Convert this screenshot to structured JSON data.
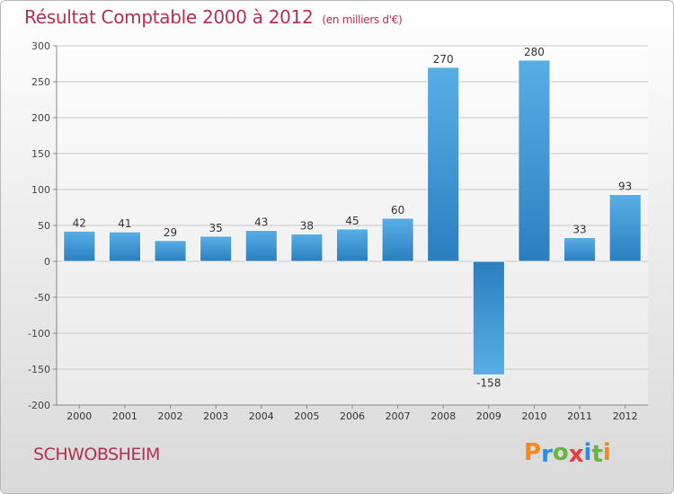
{
  "header": {
    "title": "Résultat Comptable 2000 à 2012",
    "subtitle": "(en milliers d'€)"
  },
  "footer": {
    "city": "SCHWOBSHEIM",
    "brand": "Proxiti",
    "brand_letters": [
      {
        "char": "P",
        "color": "#f08a1c"
      },
      {
        "char": "r",
        "color": "#2b8fd8"
      },
      {
        "char": "o",
        "color": "#69b33f"
      },
      {
        "char": "x",
        "color": "#e83d3d"
      },
      {
        "char": "i",
        "color": "#2b8fd8"
      },
      {
        "char": "t",
        "color": "#69b33f"
      },
      {
        "char": "i",
        "color": "#f08a1c"
      }
    ]
  },
  "colors": {
    "title": "#b5304f",
    "bar_light": "#5aaee6",
    "bar_dark": "#2b7fc0",
    "grid": "#c8c8c8"
  },
  "chart_data": {
    "type": "bar",
    "title": "Résultat Comptable 2000 à 2012",
    "subtitle": "(en milliers d'€)",
    "categories": [
      "2000",
      "2001",
      "2002",
      "2003",
      "2004",
      "2005",
      "2006",
      "2007",
      "2008",
      "2009",
      "2010",
      "2011",
      "2012"
    ],
    "values": [
      42,
      41,
      29,
      35,
      43,
      38,
      45,
      60,
      270,
      -158,
      280,
      33,
      93
    ],
    "ylim": [
      -200,
      300
    ],
    "yticks": [
      300,
      250,
      200,
      150,
      100,
      50,
      0,
      -50,
      -100,
      -150,
      -200
    ],
    "grid": true,
    "legend": "none"
  }
}
